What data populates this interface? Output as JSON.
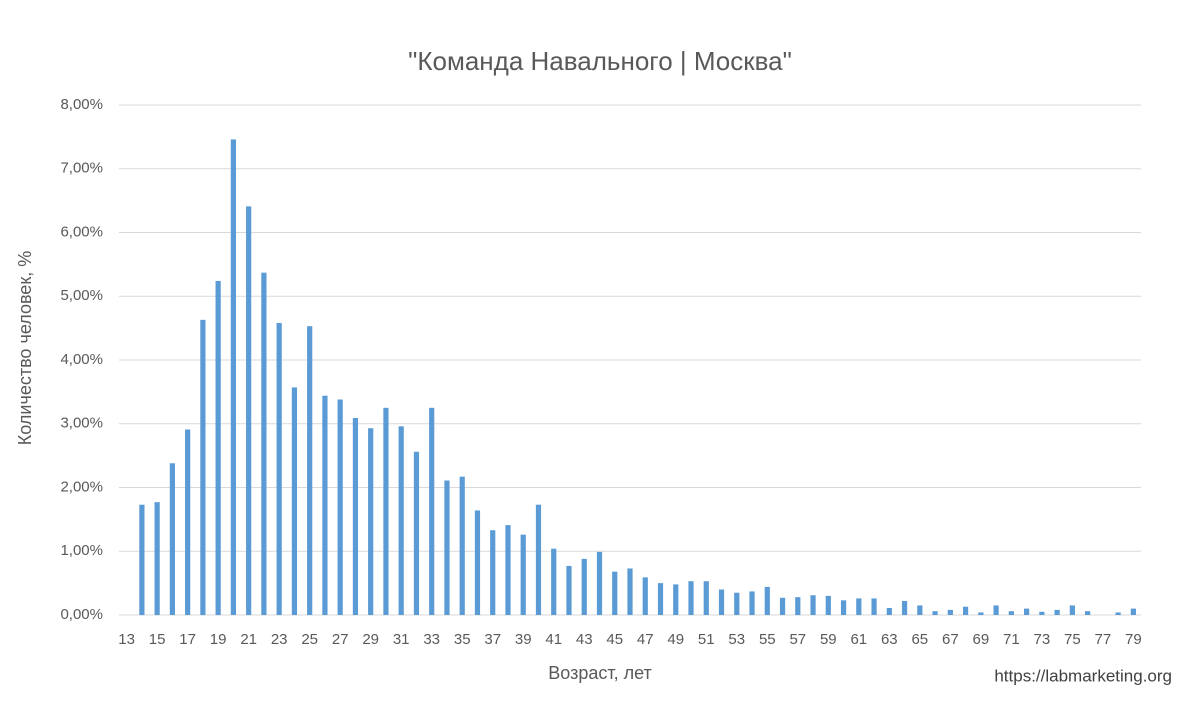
{
  "chart_data": {
    "type": "bar",
    "title": "\"Команда Навального | Москва\"",
    "x_label": "Возраст, лет",
    "y_label": "Количество человек, %",
    "source": "https://labmarketing.org",
    "color": "#5b9bd5",
    "grid": true,
    "categories": [
      "13",
      null,
      "15",
      null,
      "17",
      null,
      "19",
      null,
      "21",
      null,
      "23",
      null,
      "25",
      null,
      "27",
      null,
      "29",
      null,
      "31",
      null,
      "33",
      null,
      "35",
      null,
      "37",
      null,
      "39",
      null,
      "41",
      null,
      "43",
      null,
      "45",
      null,
      "47",
      null,
      "49",
      null,
      "51",
      null,
      "53",
      null,
      "55",
      null,
      "57",
      null,
      "59",
      null,
      "61",
      null,
      "63",
      null,
      "65",
      null,
      "67",
      null,
      "69",
      null,
      "71",
      null,
      "73",
      null,
      "75",
      null,
      "77",
      null,
      "79"
    ],
    "values": [
      0,
      1.73,
      1.77,
      2.38,
      2.91,
      4.63,
      5.24,
      7.46,
      6.41,
      5.37,
      4.58,
      3.57,
      4.53,
      3.44,
      3.38,
      3.09,
      2.93,
      3.25,
      2.96,
      2.56,
      3.25,
      2.11,
      2.17,
      1.64,
      1.33,
      1.41,
      1.26,
      1.73,
      1.04,
      0.77,
      0.88,
      0.99,
      0.68,
      0.73,
      0.59,
      0.5,
      0.48,
      0.53,
      0.53,
      0.4,
      0.35,
      0.37,
      0.44,
      0.27,
      0.28,
      0.31,
      0.3,
      0.23,
      0.26,
      0.26,
      0.11,
      0.22,
      0.15,
      0.06,
      0.08,
      0.13,
      0.04,
      0.15,
      0.06,
      0.1,
      0.05,
      0.08,
      0.15,
      0.06,
      0,
      0.04,
      0.1
    ],
    "ylim": [
      0,
      8
    ],
    "yticks": [
      {
        "value": 0,
        "label": "0,00%"
      },
      {
        "value": 1,
        "label": "1,00%"
      },
      {
        "value": 2,
        "label": "2,00%"
      },
      {
        "value": 3,
        "label": "3,00%"
      },
      {
        "value": 4,
        "label": "4,00%"
      },
      {
        "value": 5,
        "label": "5,00%"
      },
      {
        "value": 6,
        "label": "6,00%"
      },
      {
        "value": 7,
        "label": "7,00%"
      },
      {
        "value": 8,
        "label": "8,00%"
      }
    ]
  }
}
